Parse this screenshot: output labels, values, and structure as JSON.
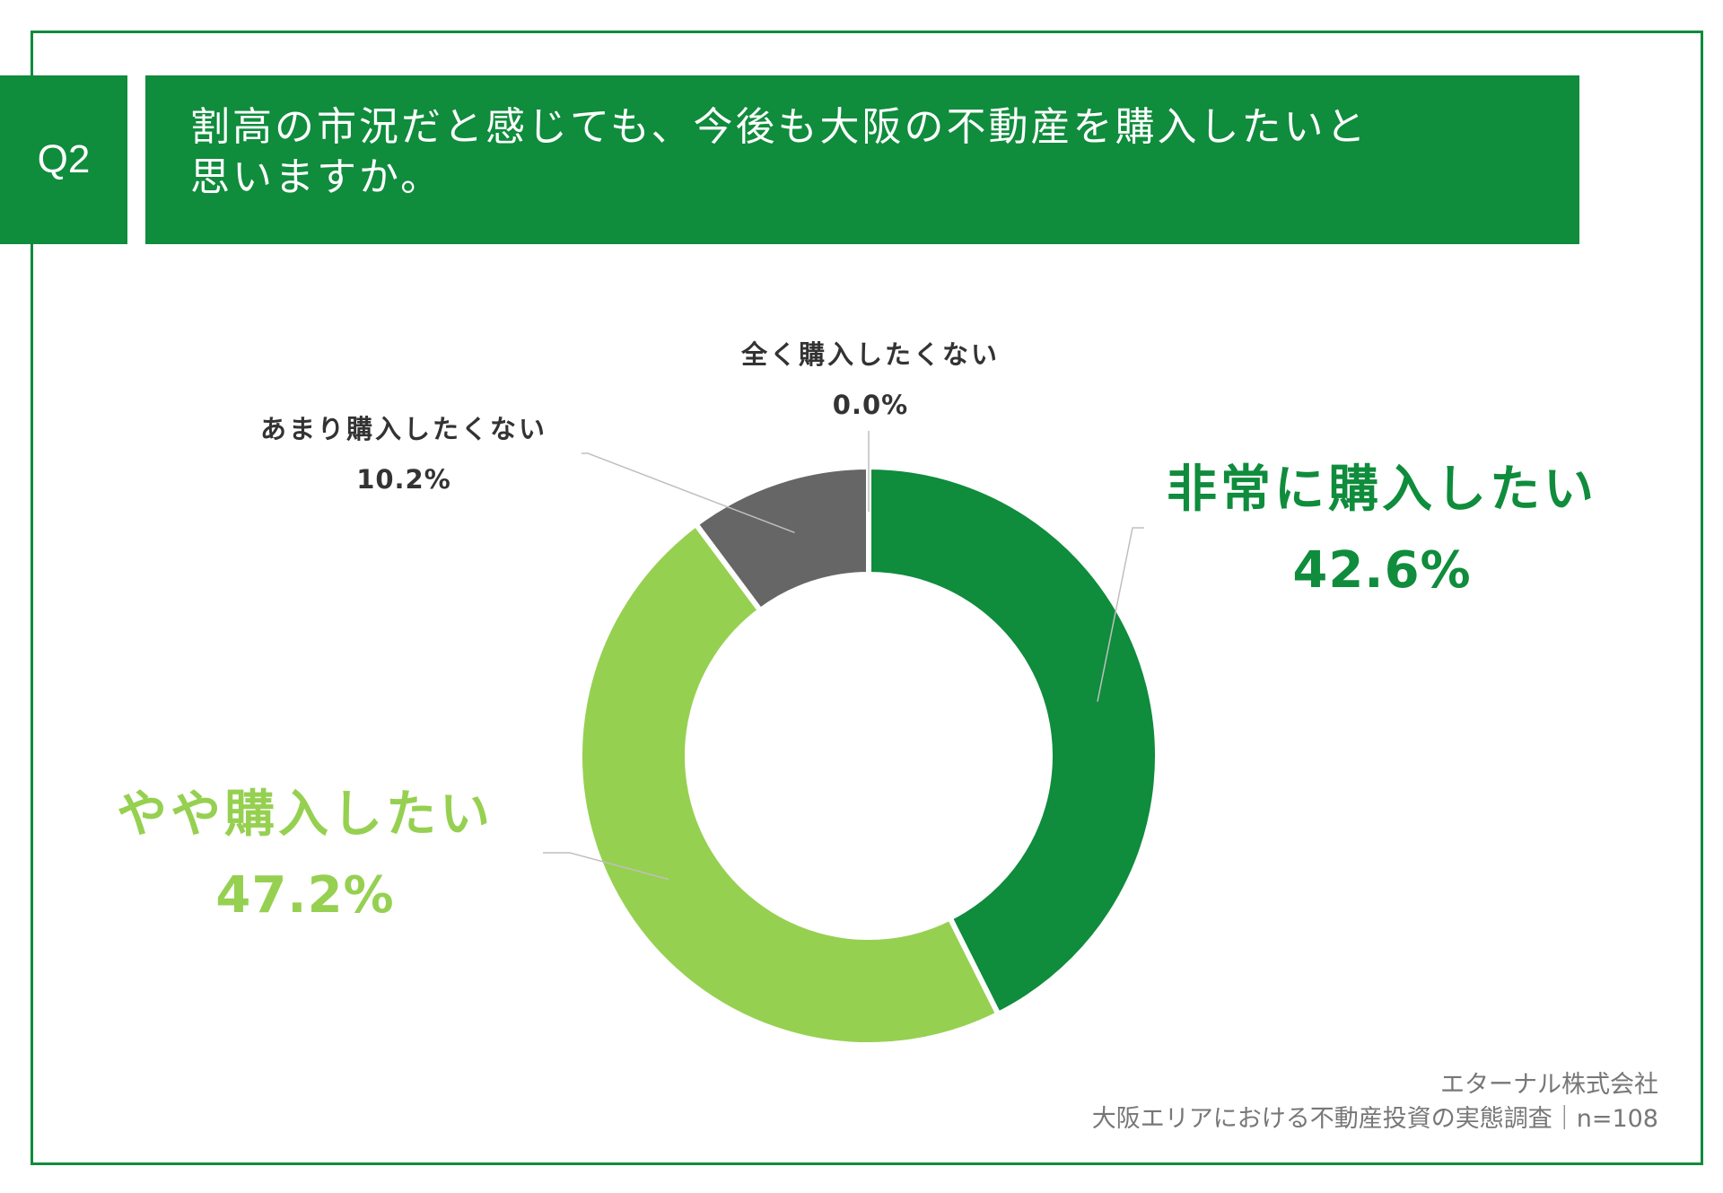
{
  "question": {
    "number": "Q2",
    "line1": "割高の市況だと感じても、今後も大阪の不動産を購入したいと",
    "line2": "思いますか。"
  },
  "colors": {
    "frame": "#0f8c3c",
    "dark_green": "#0f8c3c",
    "light_green": "#96d051",
    "gray": "#666666"
  },
  "chart_data": {
    "type": "donut",
    "title": "割高の市況だと感じても、今後も大阪の不動産を購入したいと思いますか。",
    "unit": "%",
    "slices": [
      {
        "label": "非常に購入したい",
        "value": 42.6,
        "value_label": "42.6%",
        "color": "#0f8c3c"
      },
      {
        "label": "やや購入したい",
        "value": 47.2,
        "value_label": "47.2%",
        "color": "#96d051"
      },
      {
        "label": "あまり購入したくない",
        "value": 10.2,
        "value_label": "10.2%",
        "color": "#666666"
      },
      {
        "label": "全く購入したくない",
        "value": 0.0,
        "value_label": "0.0%",
        "color": "#b0b0b0"
      }
    ]
  },
  "footer": {
    "company": "エターナル株式会社",
    "survey": "大阪エリアにおける不動産投資の実態調査｜n=108"
  }
}
